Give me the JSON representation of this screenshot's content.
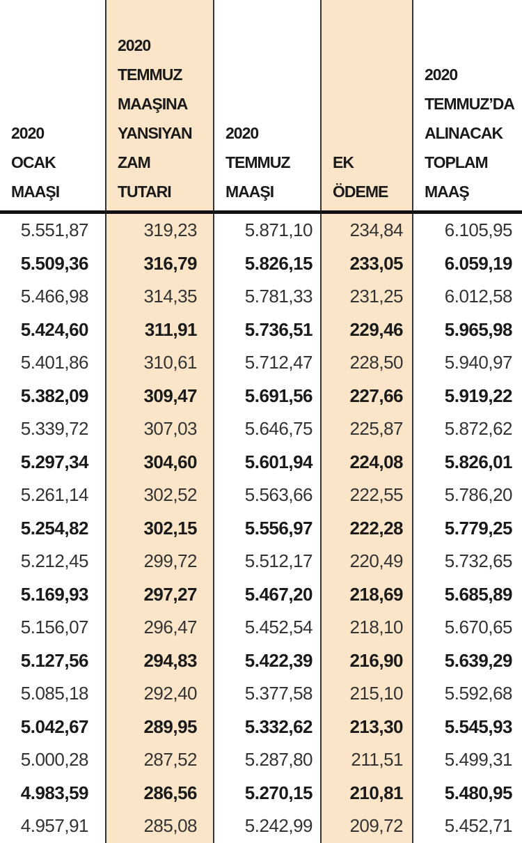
{
  "table": {
    "header": [
      {
        "lines": [
          "2020",
          "OCAK",
          "MAAŞI"
        ]
      },
      {
        "lines": [
          "2020",
          "TEMMUZ",
          "MAAŞINA",
          "YANSIYAN",
          "ZAM",
          "TUTARI"
        ]
      },
      {
        "lines": [
          "2020",
          "TEMMUZ",
          "MAAŞI"
        ]
      },
      {
        "lines": [
          "EK",
          "ÖDEME"
        ]
      },
      {
        "lines": [
          "2020",
          "TEMMUZ’DA",
          "ALINACAK",
          "TOPLAM",
          "MAAŞ"
        ]
      }
    ],
    "shaded_columns": [
      1,
      3
    ],
    "rows": [
      {
        "bold": false,
        "cells": [
          "5.551,87",
          "319,23",
          "5.871,10",
          "234,84",
          "6.105,95"
        ]
      },
      {
        "bold": true,
        "cells": [
          "5.509,36",
          "316,79",
          "5.826,15",
          "233,05",
          "6.059,19"
        ]
      },
      {
        "bold": false,
        "cells": [
          "5.466,98",
          "314,35",
          "5.781,33",
          "231,25",
          "6.012,58"
        ]
      },
      {
        "bold": true,
        "cells": [
          "5.424,60",
          "311,91",
          "5.736,51",
          "229,46",
          "5.965,98"
        ]
      },
      {
        "bold": false,
        "cells": [
          "5.401,86",
          "310,61",
          "5.712,47",
          "228,50",
          "5.940,97"
        ]
      },
      {
        "bold": true,
        "cells": [
          "5.382,09",
          "309,47",
          "5.691,56",
          "227,66",
          "5.919,22"
        ]
      },
      {
        "bold": false,
        "cells": [
          "5.339,72",
          "307,03",
          "5.646,75",
          "225,87",
          "5.872,62"
        ]
      },
      {
        "bold": true,
        "cells": [
          "5.297,34",
          "304,60",
          "5.601,94",
          "224,08",
          "5.826,01"
        ]
      },
      {
        "bold": false,
        "cells": [
          "5.261,14",
          "302,52",
          "5.563,66",
          "222,55",
          "5.786,20"
        ]
      },
      {
        "bold": true,
        "cells": [
          "5.254,82",
          "302,15",
          "5.556,97",
          "222,28",
          "5.779,25"
        ]
      },
      {
        "bold": false,
        "cells": [
          "5.212,45",
          "299,72",
          "5.512,17",
          "220,49",
          "5.732,65"
        ]
      },
      {
        "bold": true,
        "cells": [
          "5.169,93",
          "297,27",
          "5.467,20",
          "218,69",
          "5.685,89"
        ]
      },
      {
        "bold": false,
        "cells": [
          "5.156,07",
          "296,47",
          "5.452,54",
          "218,10",
          "5.670,65"
        ]
      },
      {
        "bold": true,
        "cells": [
          "5.127,56",
          "294,83",
          "5.422,39",
          "216,90",
          "5.639,29"
        ]
      },
      {
        "bold": false,
        "cells": [
          "5.085,18",
          "292,40",
          "5.377,58",
          "215,10",
          "5.592,68"
        ]
      },
      {
        "bold": true,
        "cells": [
          "5.042,67",
          "289,95",
          "5.332,62",
          "213,30",
          "5.545,93"
        ]
      },
      {
        "bold": false,
        "cells": [
          "5.000,28",
          "287,52",
          "5.287,80",
          "211,51",
          "5.499,31"
        ]
      },
      {
        "bold": true,
        "cells": [
          "4.983,59",
          "286,56",
          "5.270,15",
          "210,81",
          "5.480,95"
        ]
      },
      {
        "bold": false,
        "cells": [
          "4.957,91",
          "285,08",
          "5.242,99",
          "209,72",
          "5.452,71"
        ]
      }
    ]
  }
}
